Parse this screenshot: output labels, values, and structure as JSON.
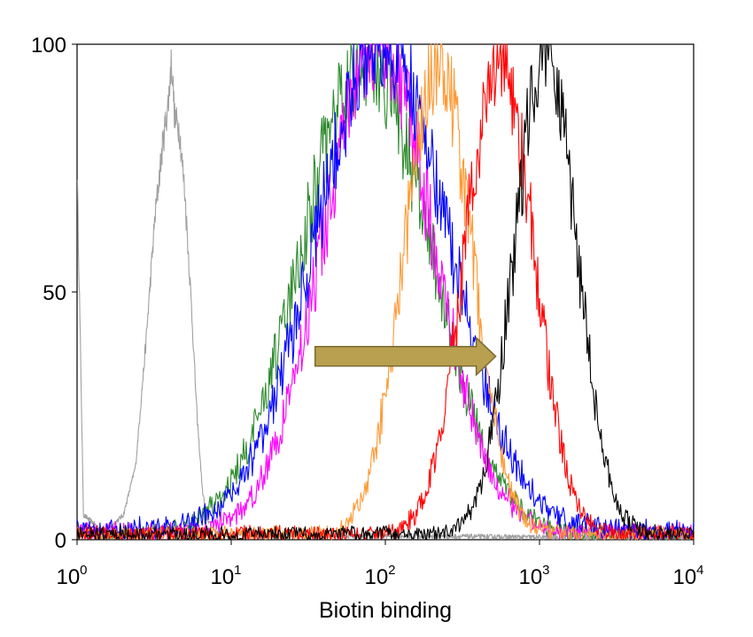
{
  "chart_data": {
    "type": "line",
    "title": "",
    "xlabel": "Biotin binding",
    "ylabel": "",
    "x_scale": "log",
    "xlim": [
      1,
      10000
    ],
    "ylim": [
      0,
      100
    ],
    "grid": false,
    "legend": "none",
    "x_ticks": [
      {
        "base": "10",
        "exp": "0",
        "value": 1
      },
      {
        "base": "10",
        "exp": "1",
        "value": 10
      },
      {
        "base": "10",
        "exp": "2",
        "value": 100
      },
      {
        "base": "10",
        "exp": "3",
        "value": 1000
      },
      {
        "base": "10",
        "exp": "4",
        "value": 10000
      }
    ],
    "y_ticks": [
      {
        "label": "0",
        "value": 0
      },
      {
        "label": "50",
        "value": 50
      },
      {
        "label": "100",
        "value": 100
      }
    ],
    "series": [
      {
        "color": "#a0a0a0",
        "peak_x": 4.2,
        "peak_y": 97,
        "spread": 0.14,
        "tail_y": 1.5,
        "points": [
          [
            1.0,
            75
          ],
          [
            1.05,
            40
          ],
          [
            1.1,
            5
          ],
          [
            1.5,
            1.5
          ],
          [
            2.0,
            5
          ],
          [
            2.4,
            15
          ],
          [
            2.8,
            40
          ],
          [
            3.2,
            65
          ],
          [
            3.6,
            80
          ],
          [
            3.9,
            88
          ],
          [
            4.1,
            97
          ],
          [
            4.3,
            85
          ],
          [
            4.6,
            83
          ],
          [
            5.0,
            70
          ],
          [
            5.5,
            48
          ],
          [
            6.0,
            25
          ],
          [
            6.5,
            10
          ],
          [
            7.0,
            4
          ],
          [
            8.0,
            1.5
          ],
          [
            10,
            1
          ],
          [
            30,
            0.8
          ],
          [
            100,
            0.8
          ],
          [
            1000,
            0.5
          ],
          [
            10000,
            0.5
          ]
        ]
      },
      {
        "color": "#2e8b2e",
        "peak_x": 75,
        "peak_y": 95,
        "spread": 0.42,
        "tail_y": 1
      },
      {
        "color": "#ff00ff",
        "peak_x": 90,
        "peak_y": 98,
        "spread": 0.36,
        "tail_y": 1.5
      },
      {
        "color": "#0000ff",
        "peak_x": 95,
        "peak_y": 98,
        "spread": 0.43,
        "tail_y": 2
      },
      {
        "color": "#ff9933",
        "peak_x": 220,
        "peak_y": 95,
        "spread": 0.22,
        "tail_y": 1
      },
      {
        "color": "#ff0000",
        "peak_x": 550,
        "peak_y": 96,
        "spread": 0.22,
        "tail_y": 1
      },
      {
        "color": "#000000",
        "peak_x": 1100,
        "peak_y": 98,
        "spread": 0.2,
        "tail_y": 1
      }
    ],
    "annotations": [
      {
        "type": "arrow",
        "from": [
          35,
          37
        ],
        "to": [
          520,
          37
        ],
        "color": "#b8a050",
        "stroke": "#7a6a30"
      }
    ]
  }
}
